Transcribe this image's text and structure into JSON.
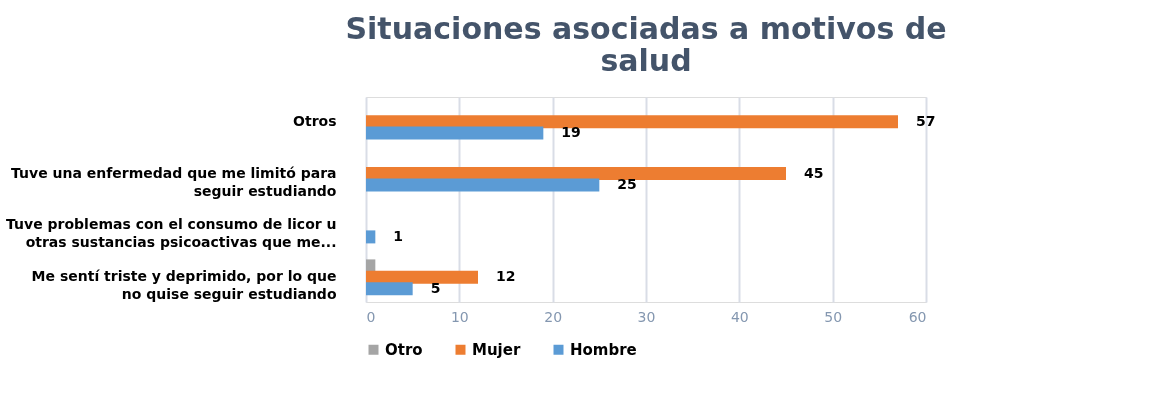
{
  "chart_data": {
    "type": "bar",
    "orientation": "horizontal",
    "title": "Situaciones asociadas a motivos de salud",
    "categories": [
      "Otros",
      "Tuve una enfermedad que me limitó para seguir estudiando",
      "Tuve problemas con el consumo de licor u otras sustancias psicoactivas que me...",
      "Me sentí triste y deprimido, por lo que no quise seguir estudiando"
    ],
    "series": [
      {
        "name": "Otro",
        "color": "#a5a5a5",
        "values": [
          null,
          null,
          null,
          1
        ],
        "value_labels": [
          null,
          null,
          null,
          null
        ]
      },
      {
        "name": "Mujer",
        "color": "#ed7d31",
        "values": [
          57,
          45,
          null,
          12
        ],
        "value_labels": [
          "57",
          "45",
          null,
          "12"
        ]
      },
      {
        "name": "Hombre",
        "color": "#5b9bd5",
        "values": [
          19,
          25,
          1,
          5
        ],
        "value_labels": [
          "19",
          "25",
          "1",
          "5"
        ]
      }
    ],
    "xlim": [
      0,
      60
    ],
    "xticks": [
      0,
      10,
      20,
      30,
      40,
      50,
      60
    ],
    "grid": "x",
    "legend": "bottom"
  }
}
